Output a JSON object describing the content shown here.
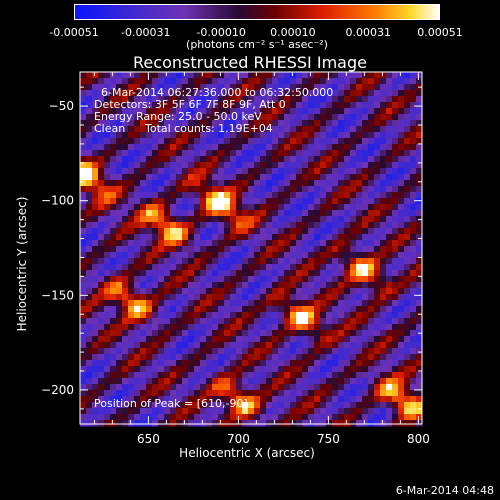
{
  "chart_data": {
    "type": "heatmap",
    "title": "Reconstructed RHESSI Image",
    "xlabel": "Heliocentric X (arcsec)",
    "ylabel": "Heliocentric Y (arcsec)",
    "xlim": [
      612,
      802
    ],
    "ylim": [
      -218,
      -32
    ],
    "xticks": [
      650,
      700,
      750,
      800
    ],
    "yticks": [
      -50,
      -100,
      -150,
      -200
    ],
    "colorbar": {
      "ticks": [
        "-0.00051",
        "-0.00031",
        "-0.00010",
        "0.00010",
        "0.00031",
        "0.00051"
      ],
      "tick_values": [
        -0.00051,
        -0.00031,
        -0.0001,
        0.0001,
        0.00031,
        0.00051
      ],
      "units": "(photons cm⁻² s⁻¹ asec⁻²)",
      "range": [
        -0.00051,
        0.00051
      ]
    },
    "annotations": {
      "time": "6-Mar-2014 06:27:36.000 to 06:32:50.000",
      "detectors": "Detectors: 3F 5F 6F 7F 8F 9F, Att 0",
      "energy": "Energy Range: 25.0 - 50.0 keV",
      "method": "Clean",
      "counts": "Total counts: 1.19E+04",
      "peak": "Position of Peak = [610,-90]"
    },
    "peak": [
      610,
      -90
    ],
    "bright_sources": [
      {
        "x": 615,
        "y": -87
      },
      {
        "x": 660,
        "y": -113
      },
      {
        "x": 690,
        "y": -102
      },
      {
        "x": 735,
        "y": -162
      },
      {
        "x": 770,
        "y": -137
      },
      {
        "x": 640,
        "y": -153
      },
      {
        "x": 700,
        "y": -205
      },
      {
        "x": 790,
        "y": -205
      }
    ]
  },
  "footer": "6-Mar-2014 04:48"
}
